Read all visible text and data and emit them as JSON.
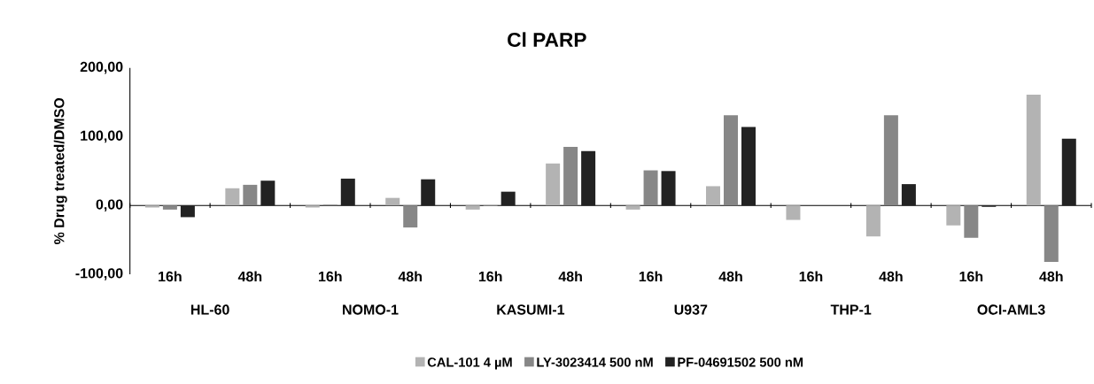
{
  "chart_data": {
    "type": "bar",
    "title": "Cl PARP",
    "ylabel": "% Drug treated/DMSO",
    "categories": [
      "16h",
      "48h",
      "16h",
      "48h",
      "16h",
      "48h",
      "16h",
      "48h",
      "16h",
      "48h",
      "16h",
      "48h"
    ],
    "series": [
      {
        "name": "CAL-101 4 µM",
        "color": "#b3b3b3",
        "values": [
          -3,
          25,
          -3,
          11,
          -6,
          61,
          -6,
          28,
          -21,
          -45,
          -29,
          161
        ]
      },
      {
        "name": "LY-3023414  500 nM",
        "color": "#878787",
        "values": [
          -6,
          30,
          1,
          -32,
          -1,
          85,
          51,
          131,
          0,
          131,
          -47,
          -82
        ]
      },
      {
        "name": "PF-04691502 500 nM",
        "color": "#222222",
        "values": [
          -17,
          36,
          39,
          38,
          20,
          79,
          50,
          114,
          0,
          31,
          -2,
          97
        ]
      }
    ],
    "annotations": [
      "HL-60",
      "NOMO-1",
      "KASUMI-1",
      "U937",
      "THP-1",
      "OCI-AML3"
    ],
    "ylim": [
      -100,
      200
    ],
    "yticks": [
      {
        "value": -100,
        "label": "-100,00"
      },
      {
        "value": 0,
        "label": "0,00"
      },
      {
        "value": 100,
        "label": "100,00"
      },
      {
        "value": 200,
        "label": "200,00"
      }
    ],
    "legend": "bottom"
  }
}
